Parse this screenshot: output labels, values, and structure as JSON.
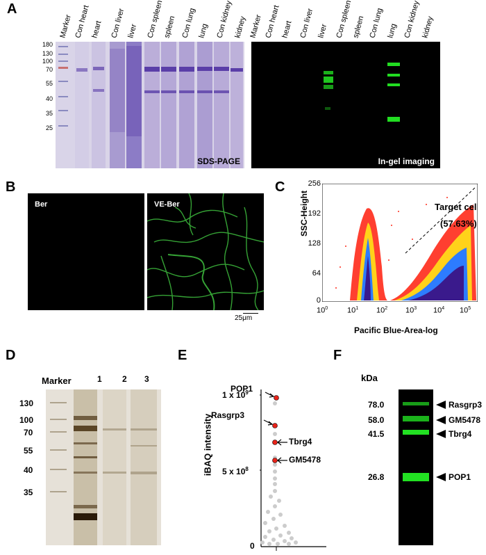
{
  "panels": {
    "A": "A",
    "B": "B",
    "C": "C",
    "D": "D",
    "E": "E",
    "F": "F"
  },
  "panelA": {
    "lanes": [
      "Marker",
      "Con heart",
      "heart",
      "Con liver",
      "liver",
      "Con spleen",
      "spleen",
      "Con lung",
      "lung",
      "Con kidney",
      "kidney"
    ],
    "mw_markers": [
      "180",
      "130",
      "100",
      "70",
      "55",
      "40",
      "35",
      "25"
    ],
    "sds_label": "SDS-PAGE",
    "ingel_label": "In-gel imaging"
  },
  "panelB": {
    "left_label": "Ber",
    "right_label": "VE-Ber",
    "scale_label": "25μm"
  },
  "panelC": {
    "ylabel": "SSC-Height",
    "xlabel": "Pacific Blue-Area-log",
    "yticks": [
      "256",
      "192",
      "128",
      "64",
      "0"
    ],
    "xticks_base": [
      "10",
      "10",
      "10",
      "10",
      "10",
      "10"
    ],
    "xticks_exp": [
      "0",
      "1",
      "2",
      "3",
      "4",
      "5"
    ],
    "gate_label": "Target cells",
    "gate_pct": "(57.63%)"
  },
  "panelD": {
    "marker": "Marker",
    "lanes": [
      "1",
      "2",
      "3"
    ],
    "mw": [
      "130",
      "100",
      "70",
      "55",
      "40",
      "35"
    ]
  },
  "panelE": {
    "ylabel": "iBAQ intensity",
    "ytick_top": "1 x 10",
    "ytick_top_exp": "9",
    "ytick_mid": "5 x 10",
    "ytick_mid_exp": "8",
    "ytick_zero": "0",
    "labels": [
      "POP1",
      "Rasgrp3",
      "Tbrg4",
      "GM5478"
    ]
  },
  "panelF": {
    "unit": "kDa",
    "mw": [
      "78.0",
      "58.0",
      "41.5",
      "26.8"
    ],
    "proteins": [
      "Rasgrp3",
      "GM5478",
      "Tbrg4",
      "POP1"
    ]
  }
}
